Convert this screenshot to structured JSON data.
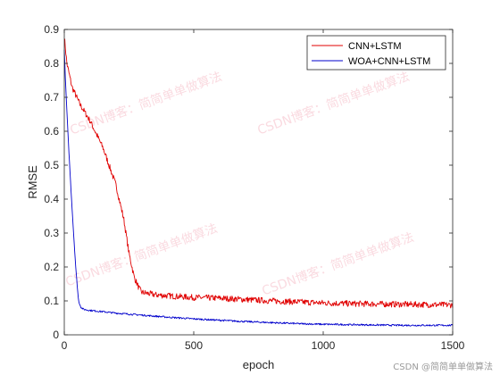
{
  "chart_data": {
    "type": "line",
    "xlabel": "epoch",
    "ylabel": "RMSE",
    "xlim": [
      0,
      1500
    ],
    "ylim": [
      0,
      0.9
    ],
    "xticks": [
      "0",
      "500",
      "1000",
      "1500"
    ],
    "yticks": [
      "0",
      "0.1",
      "0.2",
      "0.3",
      "0.4",
      "0.5",
      "0.6",
      "0.7",
      "0.8",
      "0.9"
    ],
    "grid": false,
    "legend_position": "top-right",
    "series": [
      {
        "name": "CNN+LSTM",
        "color": "#e00000",
        "x": [
          0,
          10,
          30,
          60,
          100,
          150,
          200,
          230,
          250,
          270,
          290,
          300,
          350,
          400,
          500,
          600,
          700,
          800,
          900,
          1000,
          1100,
          1200,
          1300,
          1400,
          1500
        ],
        "y": [
          0.88,
          0.8,
          0.73,
          0.68,
          0.63,
          0.55,
          0.44,
          0.34,
          0.24,
          0.17,
          0.135,
          0.125,
          0.118,
          0.115,
          0.11,
          0.108,
          0.104,
          0.1,
          0.097,
          0.094,
          0.092,
          0.091,
          0.09,
          0.089,
          0.088
        ]
      },
      {
        "name": "WOA+CNN+LSTM",
        "color": "#0000cc",
        "x": [
          0,
          5,
          15,
          25,
          35,
          45,
          55,
          65,
          75,
          100,
          150,
          200,
          300,
          400,
          500,
          600,
          700,
          800,
          900,
          1000,
          1100,
          1200,
          1300,
          1400,
          1500
        ],
        "y": [
          0.84,
          0.74,
          0.58,
          0.44,
          0.31,
          0.19,
          0.1,
          0.08,
          0.075,
          0.072,
          0.068,
          0.064,
          0.058,
          0.052,
          0.047,
          0.043,
          0.039,
          0.036,
          0.033,
          0.031,
          0.03,
          0.029,
          0.028,
          0.028,
          0.028
        ]
      }
    ]
  },
  "watermarks": [
    "CSDN博客：简简单单做算法",
    "CSDN博客：简简单单做算法",
    "CSDN博客：简简单单做算法",
    "CSDN博客：简简单单做算法"
  ],
  "footer_credit": "CSDN @简简单单做算法"
}
